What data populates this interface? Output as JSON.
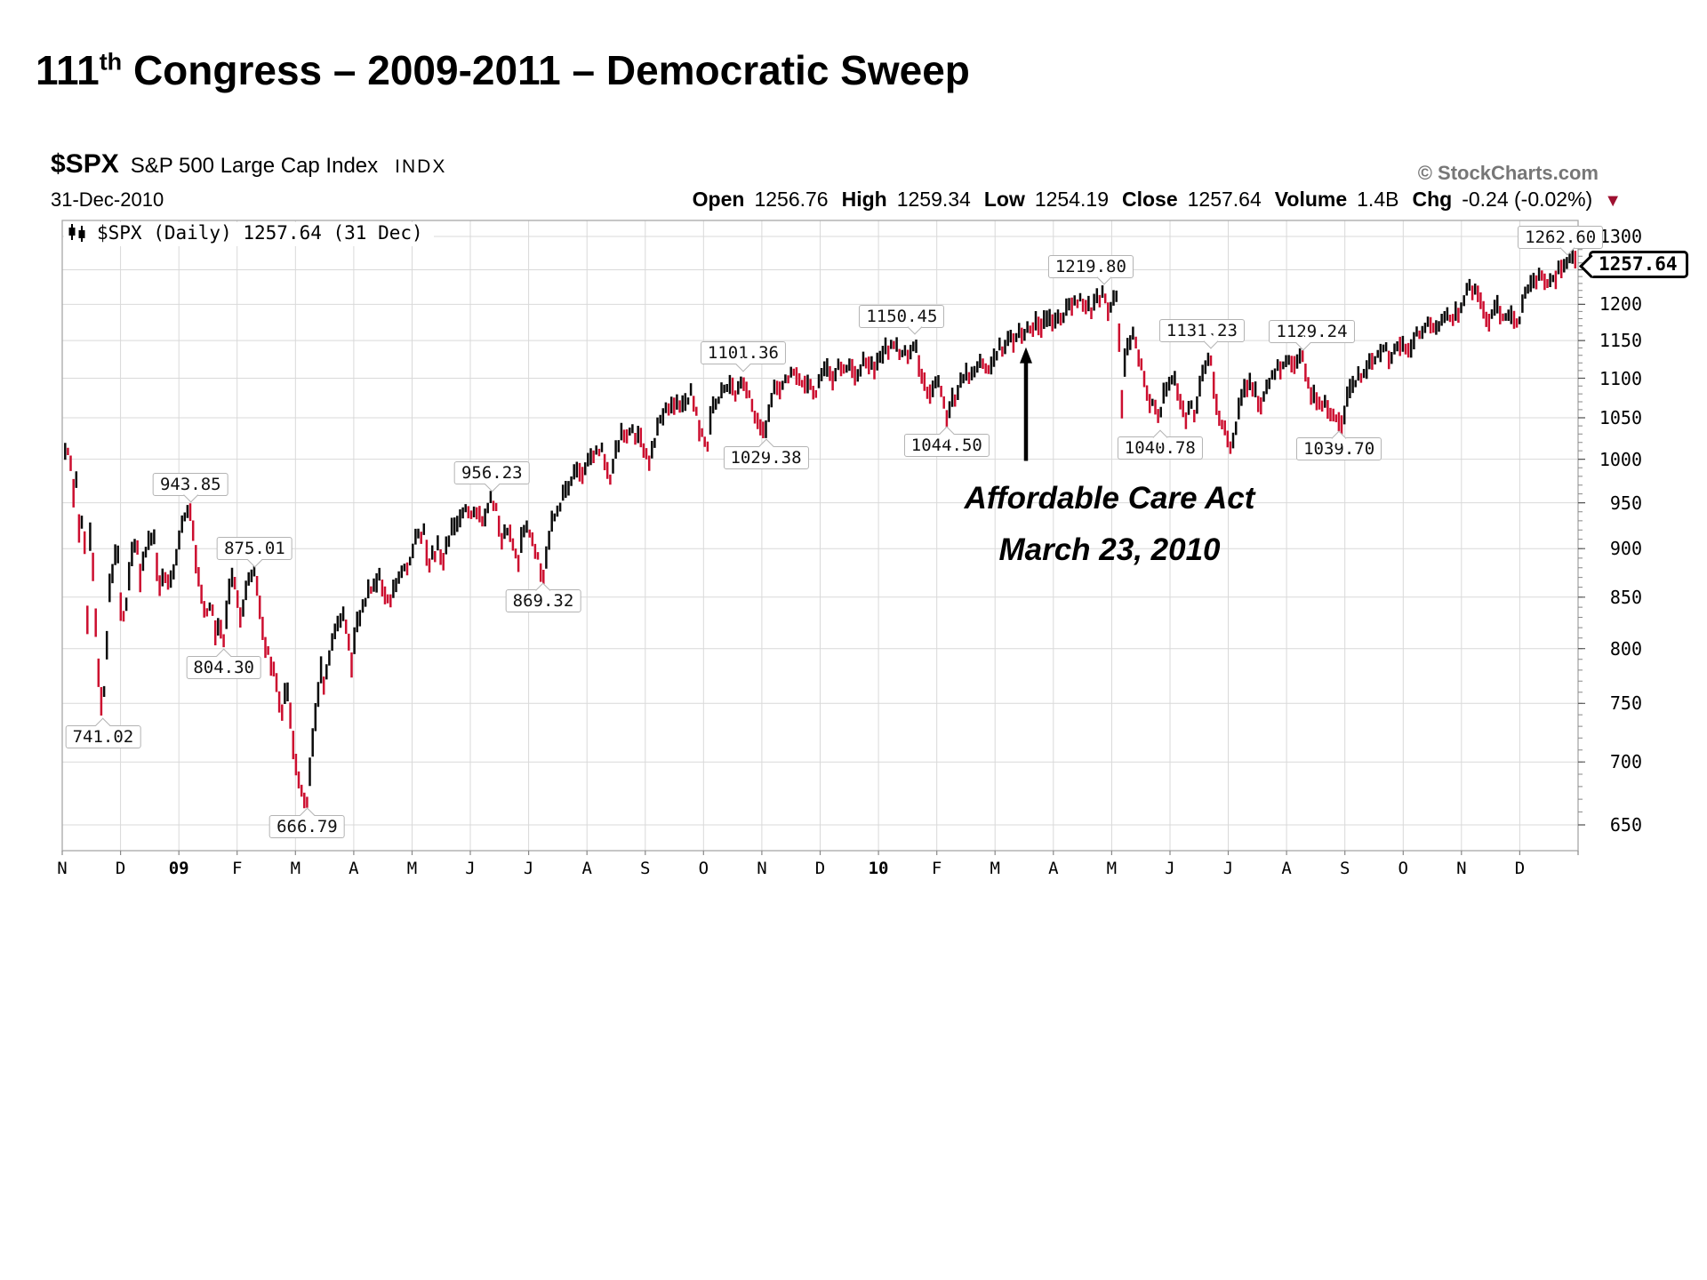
{
  "slide": {
    "title_num": "111",
    "title_sup": "th",
    "title_rest": " Congress – 2009-2011 – Democratic Sweep"
  },
  "header": {
    "symbol": "$SPX",
    "name": "S&P 500 Large Cap Index",
    "exchange": "INDX",
    "copyright": "© StockCharts.com",
    "date": "31-Dec-2010",
    "quote": [
      {
        "k": "Open",
        "v": "1256.76"
      },
      {
        "k": "High",
        "v": "1259.34"
      },
      {
        "k": "Low",
        "v": "1254.19"
      },
      {
        "k": "Close",
        "v": "1257.64"
      },
      {
        "k": "Volume",
        "v": "1.4B"
      },
      {
        "k": "Chg",
        "v": "-0.24 (-0.02%)"
      }
    ],
    "chg_direction": "down",
    "chg_triangle": "▼"
  },
  "legend": {
    "text": "$SPX (Daily) 1257.64 (31 Dec)",
    "icon": "candlestick-icon"
  },
  "price_tag": {
    "value": "1257.64"
  },
  "annotation": {
    "line1": "Affordable Care Act",
    "line2": "March 23, 2010",
    "arrow": {
      "t": 16.53,
      "tip_price": 1141,
      "tail_price": 998
    }
  },
  "colors": {
    "up_bar": "#0a0a0a",
    "down_bar": "#cc0e2f",
    "grid": "#d9d9d9",
    "border": "#a8a8a8",
    "tick": "#888888",
    "chg_triangle": "#9e1030",
    "copyright_gray": "#777777"
  },
  "chart_data": {
    "type": "line",
    "style": "daily-ohlc-bars",
    "title": "$SPX (Daily)",
    "x_start": "Nov 2008",
    "x_end": "Dec 2010",
    "y_scale": "log",
    "ylim": [
      650,
      1300
    ],
    "grid": true,
    "y_ticks": [
      650,
      700,
      750,
      800,
      850,
      900,
      950,
      1000,
      1050,
      1100,
      1150,
      1200,
      1250,
      1300
    ],
    "x_months": [
      {
        "t": 0,
        "label": "N"
      },
      {
        "t": 1,
        "label": "D"
      },
      {
        "t": 2,
        "label": "09",
        "bold": true
      },
      {
        "t": 3,
        "label": "F"
      },
      {
        "t": 4,
        "label": "M"
      },
      {
        "t": 5,
        "label": "A"
      },
      {
        "t": 6,
        "label": "M"
      },
      {
        "t": 7,
        "label": "J"
      },
      {
        "t": 8,
        "label": "J"
      },
      {
        "t": 9,
        "label": "A"
      },
      {
        "t": 10,
        "label": "S"
      },
      {
        "t": 11,
        "label": "O"
      },
      {
        "t": 12,
        "label": "N"
      },
      {
        "t": 13,
        "label": "D"
      },
      {
        "t": 14,
        "label": "10",
        "bold": true
      },
      {
        "t": 15,
        "label": "F"
      },
      {
        "t": 16,
        "label": "M"
      },
      {
        "t": 17,
        "label": "A"
      },
      {
        "t": 18,
        "label": "M"
      },
      {
        "t": 19,
        "label": "J"
      },
      {
        "t": 20,
        "label": "J"
      },
      {
        "t": 21,
        "label": "A"
      },
      {
        "t": 22,
        "label": "S"
      },
      {
        "t": 23,
        "label": "O"
      },
      {
        "t": 24,
        "label": "N"
      },
      {
        "t": 25,
        "label": "D"
      }
    ],
    "callouts": [
      {
        "label": "943.85",
        "t": 2.2,
        "price": 943.85,
        "side": "above",
        "dx": 0
      },
      {
        "label": "875.01",
        "t": 3.3,
        "price": 875.01,
        "side": "above",
        "dx": 0
      },
      {
        "label": "804.30",
        "t": 2.77,
        "price": 804.3,
        "side": "below",
        "dx": 0
      },
      {
        "label": "741.02",
        "t": 0.7,
        "price": 741.02,
        "side": "below",
        "dx": 0
      },
      {
        "label": "666.79",
        "t": 4.2,
        "price": 666.79,
        "side": "below",
        "dx": 0
      },
      {
        "label": "956.23",
        "t": 7.37,
        "price": 956.23,
        "side": "above",
        "dx": 0
      },
      {
        "label": "869.32",
        "t": 8.25,
        "price": 869.32,
        "side": "below",
        "dx": 0
      },
      {
        "label": "1101.36",
        "t": 11.68,
        "price": 1101.36,
        "side": "above",
        "dx": 0
      },
      {
        "label": "1029.38",
        "t": 12.07,
        "price": 1029.38,
        "side": "below",
        "dx": 0
      },
      {
        "label": "1150.45",
        "t": 14.63,
        "price": 1150.45,
        "side": "above",
        "dx": -15
      },
      {
        "label": "1044.50",
        "t": 15.17,
        "price": 1044.5,
        "side": "below",
        "dx": 0
      },
      {
        "label": "1219.80",
        "t": 17.87,
        "price": 1219.8,
        "side": "above",
        "dx": -15
      },
      {
        "label": "1131.23",
        "t": 19.7,
        "price": 1131.23,
        "side": "above",
        "dx": -10
      },
      {
        "label": "1129.24",
        "t": 21.28,
        "price": 1129.24,
        "side": "above",
        "dx": 10
      },
      {
        "label": "1040.78",
        "t": 18.83,
        "price": 1040.78,
        "side": "below",
        "dx": 0
      },
      {
        "label": "1039.70",
        "t": 21.9,
        "price": 1039.7,
        "side": "below",
        "dx": 0
      },
      {
        "label": "1262.60",
        "t": 25.82,
        "price": 1262.6,
        "side": "above",
        "dx": -8
      }
    ],
    "last": {
      "open": 1256.76,
      "high": 1259.34,
      "low": 1254.19,
      "close": 1257.64,
      "volume": "1.4B",
      "chg": "-0.24 (-0.02%)"
    },
    "points": [
      [
        0.06,
        1004
      ],
      [
        0.13,
        1006
      ],
      [
        0.2,
        955
      ],
      [
        0.25,
        985
      ],
      [
        0.3,
        908
      ],
      [
        0.36,
        952
      ],
      [
        0.44,
        818
      ],
      [
        0.48,
        911
      ],
      [
        0.53,
        873
      ],
      [
        0.6,
        800
      ],
      [
        0.66,
        752
      ],
      [
        0.7,
        741
      ],
      [
        0.76,
        800
      ],
      [
        0.8,
        857
      ],
      [
        0.9,
        887
      ],
      [
        0.96,
        896
      ],
      [
        1.03,
        816
      ],
      [
        1.1,
        848
      ],
      [
        1.18,
        888
      ],
      [
        1.27,
        913
      ],
      [
        1.33,
        871
      ],
      [
        1.4,
        885
      ],
      [
        1.5,
        913
      ],
      [
        1.57,
        919
      ],
      [
        1.66,
        863
      ],
      [
        1.75,
        872
      ],
      [
        1.83,
        866
      ],
      [
        1.9,
        872
      ],
      [
        1.97,
        890
      ],
      [
        2.06,
        927
      ],
      [
        2.13,
        935
      ],
      [
        2.2,
        943.85
      ],
      [
        2.3,
        890
      ],
      [
        2.4,
        843
      ],
      [
        2.47,
        827
      ],
      [
        2.55,
        844
      ],
      [
        2.63,
        810
      ],
      [
        2.7,
        827
      ],
      [
        2.77,
        804.3
      ],
      [
        2.85,
        845
      ],
      [
        2.92,
        874
      ],
      [
        3.0,
        845
      ],
      [
        3.06,
        826
      ],
      [
        3.14,
        860
      ],
      [
        3.22,
        869
      ],
      [
        3.3,
        875.01
      ],
      [
        3.4,
        833
      ],
      [
        3.5,
        800
      ],
      [
        3.57,
        789
      ],
      [
        3.66,
        770
      ],
      [
        3.76,
        743
      ],
      [
        3.85,
        765
      ],
      [
        3.92,
        735
      ],
      [
        4.0,
        700
      ],
      [
        4.07,
        683
      ],
      [
        4.13,
        676
      ],
      [
        4.2,
        666.79
      ],
      [
        4.28,
        712
      ],
      [
        4.36,
        750
      ],
      [
        4.44,
        778
      ],
      [
        4.5,
        768
      ],
      [
        4.58,
        794
      ],
      [
        4.66,
        815
      ],
      [
        4.74,
        823
      ],
      [
        4.82,
        833
      ],
      [
        4.9,
        813
      ],
      [
        4.97,
        787
      ],
      [
        5.05,
        825
      ],
      [
        5.13,
        835
      ],
      [
        5.22,
        852
      ],
      [
        5.3,
        856
      ],
      [
        5.38,
        865
      ],
      [
        5.45,
        870
      ],
      [
        5.53,
        850
      ],
      [
        5.6,
        843
      ],
      [
        5.7,
        866
      ],
      [
        5.8,
        873
      ],
      [
        5.88,
        877
      ],
      [
        5.97,
        888
      ],
      [
        6.05,
        907
      ],
      [
        6.13,
        912
      ],
      [
        6.2,
        920
      ],
      [
        6.28,
        883
      ],
      [
        6.37,
        893
      ],
      [
        6.45,
        903
      ],
      [
        6.52,
        888
      ],
      [
        6.62,
        910
      ],
      [
        6.72,
        923
      ],
      [
        6.8,
        931
      ],
      [
        6.9,
        945
      ],
      [
        7.0,
        942
      ],
      [
        7.08,
        940
      ],
      [
        7.17,
        936
      ],
      [
        7.25,
        931
      ],
      [
        7.37,
        956.23
      ],
      [
        7.45,
        939
      ],
      [
        7.53,
        903
      ],
      [
        7.6,
        917
      ],
      [
        7.66,
        927
      ],
      [
        7.74,
        896
      ],
      [
        7.82,
        888
      ],
      [
        7.9,
        920
      ],
      [
        7.97,
        923
      ],
      [
        8.05,
        917
      ],
      [
        8.13,
        896
      ],
      [
        8.18,
        880
      ],
      [
        8.25,
        869.32
      ],
      [
        8.33,
        900
      ],
      [
        8.42,
        932
      ],
      [
        8.5,
        940
      ],
      [
        8.58,
        954
      ],
      [
        8.68,
        968
      ],
      [
        8.77,
        979
      ],
      [
        8.85,
        987
      ],
      [
        8.93,
        983
      ],
      [
        9.03,
        997
      ],
      [
        9.1,
        1007
      ],
      [
        9.18,
        1005
      ],
      [
        9.25,
        1010
      ],
      [
        9.33,
        994
      ],
      [
        9.4,
        980
      ],
      [
        9.48,
        1007
      ],
      [
        9.57,
        1028
      ],
      [
        9.65,
        1024
      ],
      [
        9.73,
        1028
      ],
      [
        9.8,
        1031
      ],
      [
        9.88,
        1025
      ],
      [
        9.95,
        1021
      ],
      [
        10.03,
        1003
      ],
      [
        10.08,
        992
      ],
      [
        10.16,
        1025
      ],
      [
        10.23,
        1043
      ],
      [
        10.32,
        1052
      ],
      [
        10.42,
        1068
      ],
      [
        10.52,
        1060
      ],
      [
        10.62,
        1072
      ],
      [
        10.7,
        1076
      ],
      [
        10.78,
        1080
      ],
      [
        10.85,
        1060
      ],
      [
        10.92,
        1042
      ],
      [
        11.0,
        1025
      ],
      [
        11.07,
        1020
      ],
      [
        11.15,
        1058
      ],
      [
        11.23,
        1075
      ],
      [
        11.32,
        1087
      ],
      [
        11.42,
        1092
      ],
      [
        11.5,
        1087
      ],
      [
        11.57,
        1081
      ],
      [
        11.68,
        1101.36
      ],
      [
        11.76,
        1081
      ],
      [
        11.83,
        1066
      ],
      [
        11.9,
        1044
      ],
      [
        11.97,
        1036
      ],
      [
        12.07,
        1029.38
      ],
      [
        12.15,
        1069
      ],
      [
        12.23,
        1093
      ],
      [
        12.32,
        1087
      ],
      [
        12.4,
        1098
      ],
      [
        12.48,
        1110
      ],
      [
        12.55,
        1113
      ],
      [
        12.63,
        1094
      ],
      [
        12.7,
        1088
      ],
      [
        12.78,
        1094
      ],
      [
        12.85,
        1091
      ],
      [
        12.92,
        1083
      ],
      [
        13.0,
        1102
      ],
      [
        13.07,
        1112
      ],
      [
        13.15,
        1106
      ],
      [
        13.22,
        1101
      ],
      [
        13.3,
        1119
      ],
      [
        13.38,
        1113
      ],
      [
        13.46,
        1114
      ],
      [
        13.55,
        1108
      ],
      [
        13.63,
        1102
      ],
      [
        13.72,
        1118
      ],
      [
        13.8,
        1126
      ],
      [
        13.88,
        1120
      ],
      [
        13.97,
        1115
      ],
      [
        14.06,
        1133
      ],
      [
        14.15,
        1137
      ],
      [
        14.25,
        1143
      ],
      [
        14.35,
        1137
      ],
      [
        14.45,
        1130
      ],
      [
        14.55,
        1140
      ],
      [
        14.63,
        1150.45
      ],
      [
        14.7,
        1115
      ],
      [
        14.76,
        1092
      ],
      [
        14.83,
        1084
      ],
      [
        14.9,
        1074
      ],
      [
        14.98,
        1090
      ],
      [
        15.05,
        1095
      ],
      [
        15.12,
        1066
      ],
      [
        15.17,
        1044.5
      ],
      [
        15.25,
        1078
      ],
      [
        15.33,
        1075
      ],
      [
        15.42,
        1095
      ],
      [
        15.52,
        1109
      ],
      [
        15.62,
        1104
      ],
      [
        15.7,
        1118
      ],
      [
        15.8,
        1115
      ],
      [
        15.9,
        1118
      ],
      [
        16.0,
        1135
      ],
      [
        16.1,
        1140
      ],
      [
        16.2,
        1150
      ],
      [
        16.32,
        1153
      ],
      [
        16.45,
        1160
      ],
      [
        16.57,
        1166
      ],
      [
        16.7,
        1170
      ],
      [
        16.77,
        1174
      ],
      [
        16.85,
        1171
      ],
      [
        16.95,
        1178
      ],
      [
        17.05,
        1178
      ],
      [
        17.15,
        1187
      ],
      [
        17.25,
        1192
      ],
      [
        17.35,
        1199
      ],
      [
        17.45,
        1207
      ],
      [
        17.55,
        1197
      ],
      [
        17.63,
        1192
      ],
      [
        17.73,
        1206
      ],
      [
        17.8,
        1212
      ],
      [
        17.87,
        1219.8
      ],
      [
        17.95,
        1186
      ],
      [
        18.03,
        1203
      ],
      [
        18.1,
        1207
      ],
      [
        18.17,
        1066
      ],
      [
        18.23,
        1128
      ],
      [
        18.3,
        1145
      ],
      [
        18.37,
        1157
      ],
      [
        18.45,
        1135
      ],
      [
        18.52,
        1116
      ],
      [
        18.58,
        1087
      ],
      [
        18.65,
        1068
      ],
      [
        18.72,
        1074
      ],
      [
        18.78,
        1055
      ],
      [
        18.83,
        1040.78
      ],
      [
        18.9,
        1090
      ],
      [
        18.97,
        1086
      ],
      [
        19.05,
        1103
      ],
      [
        19.13,
        1088
      ],
      [
        19.2,
        1065
      ],
      [
        19.27,
        1050
      ],
      [
        19.35,
        1062
      ],
      [
        19.43,
        1058
      ],
      [
        19.52,
        1092
      ],
      [
        19.6,
        1117
      ],
      [
        19.7,
        1131.23
      ],
      [
        19.78,
        1077
      ],
      [
        19.86,
        1047
      ],
      [
        19.95,
        1041
      ],
      [
        20.03,
        1010.9
      ],
      [
        20.12,
        1028
      ],
      [
        20.22,
        1078
      ],
      [
        20.3,
        1090
      ],
      [
        20.4,
        1095
      ],
      [
        20.48,
        1077
      ],
      [
        20.57,
        1065
      ],
      [
        20.67,
        1088
      ],
      [
        20.77,
        1103
      ],
      [
        20.88,
        1115
      ],
      [
        20.97,
        1122
      ],
      [
        21.07,
        1125
      ],
      [
        21.17,
        1121
      ],
      [
        21.28,
        1129.24
      ],
      [
        21.37,
        1089
      ],
      [
        21.47,
        1079
      ],
      [
        21.57,
        1067
      ],
      [
        21.67,
        1072
      ],
      [
        21.77,
        1047
      ],
      [
        21.83,
        1057
      ],
      [
        21.9,
        1039.7
      ],
      [
        21.98,
        1049
      ],
      [
        22.07,
        1081
      ],
      [
        22.15,
        1091
      ],
      [
        22.25,
        1104
      ],
      [
        22.33,
        1109
      ],
      [
        22.43,
        1116
      ],
      [
        22.53,
        1125
      ],
      [
        22.62,
        1139
      ],
      [
        22.7,
        1148
      ],
      [
        22.78,
        1122
      ],
      [
        22.87,
        1134
      ],
      [
        22.95,
        1141
      ],
      [
        23.05,
        1146
      ],
      [
        23.13,
        1137
      ],
      [
        23.23,
        1158
      ],
      [
        23.33,
        1165
      ],
      [
        23.42,
        1178
      ],
      [
        23.52,
        1169
      ],
      [
        23.6,
        1159
      ],
      [
        23.7,
        1183
      ],
      [
        23.8,
        1180
      ],
      [
        23.9,
        1184
      ],
      [
        24.0,
        1197
      ],
      [
        24.08,
        1221
      ],
      [
        24.13,
        1227
      ],
      [
        24.22,
        1218
      ],
      [
        24.3,
        1213
      ],
      [
        24.38,
        1193
      ],
      [
        24.47,
        1173
      ],
      [
        24.55,
        1197
      ],
      [
        24.63,
        1199
      ],
      [
        24.72,
        1180
      ],
      [
        24.8,
        1177
      ],
      [
        24.88,
        1189
      ],
      [
        24.97,
        1174
      ],
      [
        25.05,
        1206
      ],
      [
        25.13,
        1213
      ],
      [
        25.22,
        1228
      ],
      [
        25.32,
        1235
      ],
      [
        25.42,
        1240
      ],
      [
        25.5,
        1233
      ],
      [
        25.58,
        1235
      ],
      [
        25.67,
        1247
      ],
      [
        25.75,
        1258
      ],
      [
        25.83,
        1260
      ],
      [
        25.9,
        1262.6
      ],
      [
        25.98,
        1257.64
      ]
    ]
  }
}
